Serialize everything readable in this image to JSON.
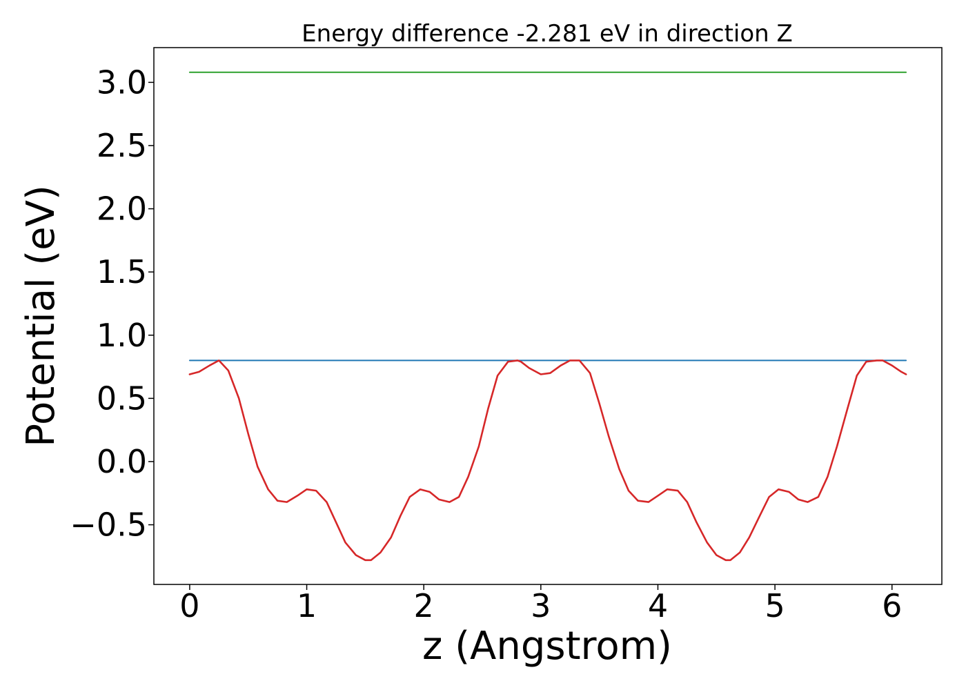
{
  "chart_data": {
    "type": "line",
    "title": "Energy difference -2.281 eV in direction Z",
    "xlabel": "z (Angstrom)",
    "ylabel": "Potential (eV)",
    "xlim": [
      -0.306,
      6.426
    ],
    "ylim": [
      -0.972,
      3.275
    ],
    "xticks": [
      0,
      1,
      2,
      3,
      4,
      5,
      6
    ],
    "xtick_labels": [
      "0",
      "1",
      "2",
      "3",
      "4",
      "5",
      "6"
    ],
    "yticks": [
      -0.5,
      0.0,
      0.5,
      1.0,
      1.5,
      2.0,
      2.5,
      3.0
    ],
    "ytick_labels": [
      "−0.5",
      "0.0",
      "0.5",
      "1.0",
      "1.5",
      "2.0",
      "2.5",
      "3.0"
    ],
    "grid": false,
    "legend": "none",
    "series": [
      {
        "color": "#2ca02c",
        "x": [
          0.0,
          6.12
        ],
        "y": [
          3.08,
          3.08
        ]
      },
      {
        "color": "#1f77b4",
        "x": [
          0.0,
          6.12
        ],
        "y": [
          0.8,
          0.8
        ]
      },
      {
        "color": "#d62728",
        "x": [
          0.0,
          0.08,
          0.17,
          0.25,
          0.33,
          0.42,
          0.5,
          0.58,
          0.67,
          0.75,
          0.83,
          0.92,
          1.0,
          1.08,
          1.17,
          1.25,
          1.33,
          1.42,
          1.5,
          1.55,
          1.63,
          1.72,
          1.8,
          1.88,
          1.97,
          2.05,
          2.13,
          2.22,
          2.3,
          2.38,
          2.47,
          2.55,
          2.63,
          2.72,
          2.8,
          2.83,
          2.9,
          3.0,
          3.08,
          3.17,
          3.25,
          3.33,
          3.42,
          3.5,
          3.58,
          3.67,
          3.75,
          3.83,
          3.92,
          4.0,
          4.08,
          4.17,
          4.25,
          4.33,
          4.42,
          4.5,
          4.58,
          4.62,
          4.7,
          4.78,
          4.87,
          4.95,
          5.03,
          5.12,
          5.2,
          5.28,
          5.37,
          5.45,
          5.53,
          5.62,
          5.7,
          5.78,
          5.87,
          5.92,
          6.0,
          6.08,
          6.12
        ],
        "y": [
          0.69,
          0.71,
          0.76,
          0.8,
          0.72,
          0.5,
          0.22,
          -0.04,
          -0.22,
          -0.31,
          -0.32,
          -0.27,
          -0.22,
          -0.23,
          -0.32,
          -0.48,
          -0.64,
          -0.74,
          -0.78,
          -0.78,
          -0.72,
          -0.6,
          -0.43,
          -0.28,
          -0.22,
          -0.24,
          -0.3,
          -0.32,
          -0.28,
          -0.12,
          0.12,
          0.42,
          0.68,
          0.79,
          0.8,
          0.79,
          0.74,
          0.69,
          0.7,
          0.76,
          0.8,
          0.8,
          0.7,
          0.46,
          0.2,
          -0.06,
          -0.23,
          -0.31,
          -0.32,
          -0.27,
          -0.22,
          -0.23,
          -0.32,
          -0.48,
          -0.64,
          -0.74,
          -0.78,
          -0.78,
          -0.72,
          -0.6,
          -0.43,
          -0.28,
          -0.22,
          -0.24,
          -0.3,
          -0.32,
          -0.28,
          -0.12,
          0.12,
          0.42,
          0.68,
          0.79,
          0.8,
          0.8,
          0.76,
          0.71,
          0.69
        ]
      }
    ]
  }
}
